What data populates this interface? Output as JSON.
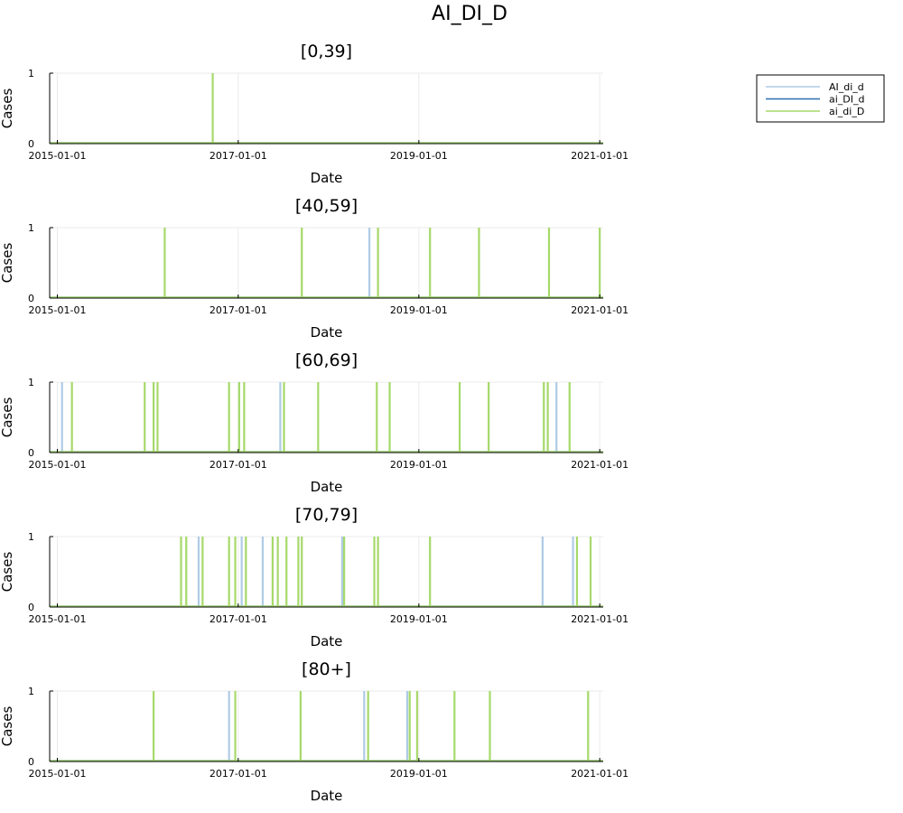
{
  "figure": {
    "title": "AI_DI_D"
  },
  "chart_data": [
    {
      "type": "line",
      "title": "[0,39]",
      "xlabel": "Date",
      "ylabel": "Cases",
      "xlim": [
        "2014-12-01",
        "2021-01-15"
      ],
      "ylim": [
        0,
        1
      ],
      "xticks": [
        "2015-01-01",
        "2017-01-01",
        "2019-01-01",
        "2021-01-01"
      ],
      "yticks": [
        0,
        1
      ],
      "grid": true,
      "series": [
        {
          "name": "AI_di_d",
          "spikes": []
        },
        {
          "name": "ai_DI_d",
          "spikes": []
        },
        {
          "name": "ai_di_D",
          "spikes": [
            "2016-09-20"
          ]
        }
      ]
    },
    {
      "type": "line",
      "title": "[40,59]",
      "xlabel": "Date",
      "ylabel": "Cases",
      "xlim": [
        "2014-12-01",
        "2021-01-15"
      ],
      "ylim": [
        0,
        1
      ],
      "xticks": [
        "2015-01-01",
        "2017-01-01",
        "2019-01-01",
        "2021-01-01"
      ],
      "yticks": [
        0,
        1
      ],
      "grid": true,
      "series": [
        {
          "name": "AI_di_d",
          "spikes": [
            "2018-06-15"
          ]
        },
        {
          "name": "ai_DI_d",
          "spikes": []
        },
        {
          "name": "ai_di_D",
          "spikes": [
            "2016-03-10",
            "2017-09-15",
            "2018-07-20",
            "2019-02-15",
            "2019-09-01",
            "2020-06-10",
            "2021-01-01"
          ]
        }
      ]
    },
    {
      "type": "line",
      "title": "[60,69]",
      "xlabel": "Date",
      "ylabel": "Cases",
      "xlim": [
        "2014-12-01",
        "2021-01-15"
      ],
      "ylim": [
        0,
        1
      ],
      "xticks": [
        "2015-01-01",
        "2017-01-01",
        "2019-01-01",
        "2021-01-01"
      ],
      "yticks": [
        0,
        1
      ],
      "grid": true,
      "series": [
        {
          "name": "AI_di_d",
          "spikes": [
            "2015-01-20",
            "2017-06-20",
            "2020-07-10"
          ]
        },
        {
          "name": "ai_DI_d",
          "spikes": []
        },
        {
          "name": "ai_di_D",
          "spikes": [
            "2015-03-01",
            "2015-12-20",
            "2016-01-25",
            "2016-02-10",
            "2016-11-25",
            "2017-01-05",
            "2017-01-25",
            "2017-07-05",
            "2017-11-20",
            "2018-07-15",
            "2018-09-05",
            "2019-06-15",
            "2019-10-10",
            "2020-05-20",
            "2020-06-05",
            "2020-09-01"
          ]
        }
      ]
    },
    {
      "type": "line",
      "title": "[70,79]",
      "xlabel": "Date",
      "ylabel": "Cases",
      "xlim": [
        "2014-12-01",
        "2021-01-15"
      ],
      "ylim": [
        0,
        1
      ],
      "xticks": [
        "2015-01-01",
        "2017-01-01",
        "2019-01-01",
        "2021-01-01"
      ],
      "yticks": [
        0,
        1
      ],
      "grid": true,
      "series": [
        {
          "name": "AI_di_d",
          "spikes": [
            "2016-07-25",
            "2017-01-15",
            "2017-04-10",
            "2018-02-25",
            "2020-05-15",
            "2020-09-15"
          ]
        },
        {
          "name": "ai_DI_d",
          "spikes": []
        },
        {
          "name": "ai_di_D",
          "spikes": [
            "2016-05-15",
            "2016-06-05",
            "2016-08-10",
            "2016-11-25",
            "2016-12-20",
            "2017-02-01",
            "2017-05-20",
            "2017-06-10",
            "2017-07-15",
            "2017-09-01",
            "2017-09-15",
            "2018-03-05",
            "2018-07-05",
            "2018-07-20",
            "2019-02-15",
            "2020-10-01",
            "2020-11-25"
          ]
        }
      ]
    },
    {
      "type": "line",
      "title": "[80+]",
      "xlabel": "Date",
      "ylabel": "Cases",
      "xlim": [
        "2014-12-01",
        "2021-01-15"
      ],
      "ylim": [
        0,
        1
      ],
      "xticks": [
        "2015-01-01",
        "2017-01-01",
        "2019-01-01",
        "2021-01-01"
      ],
      "yticks": [
        0,
        1
      ],
      "grid": true,
      "series": [
        {
          "name": "AI_di_d",
          "spikes": [
            "2016-11-25",
            "2018-05-25",
            "2018-11-15"
          ]
        },
        {
          "name": "ai_DI_d",
          "spikes": []
        },
        {
          "name": "ai_di_D",
          "spikes": [
            "2016-01-25",
            "2016-12-20",
            "2017-09-10",
            "2018-06-10",
            "2018-11-25",
            "2018-12-25",
            "2019-05-25",
            "2019-10-15",
            "2020-11-15"
          ]
        }
      ]
    }
  ],
  "legend": {
    "placement": "top-right",
    "entries": [
      {
        "label": "AI_di_d",
        "color": "#aecbe6"
      },
      {
        "label": "ai_DI_d",
        "color": "#2c6eaf"
      },
      {
        "label": "ai_di_D",
        "color": "#a6d96a"
      }
    ]
  }
}
